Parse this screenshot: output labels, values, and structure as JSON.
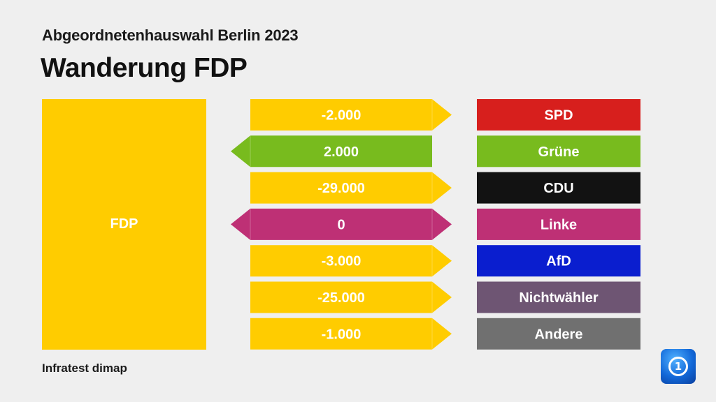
{
  "header": {
    "subtitle": "Abgeordnetenhauswahl Berlin 2023",
    "title": "Wanderung FDP"
  },
  "source": "Infratest dimap",
  "logo": {
    "icon": "tagesschau-logo-icon",
    "glyph": "1"
  },
  "colors": {
    "background": "#efefef",
    "fdp": "#ffcc00",
    "text_light": "#ffffff"
  },
  "chart_data": {
    "type": "bar",
    "title": "Wanderung FDP",
    "subtitle": "Abgeordnetenhauswahl Berlin 2023",
    "focus_party": {
      "name": "FDP",
      "color": "#ffcc00"
    },
    "categories": [
      "SPD",
      "Grüne",
      "CDU",
      "Linke",
      "AfD",
      "Nichtwähler",
      "Andere"
    ],
    "values": [
      -2000,
      2000,
      -29000,
      0,
      -3000,
      -25000,
      -1000
    ],
    "value_labels": [
      "-2.000",
      "2.000",
      "-29.000",
      "0",
      "-3.000",
      "-25.000",
      "-1.000"
    ],
    "party_colors": [
      "#d71f1d",
      "#78bb1e",
      "#121212",
      "#be3075",
      "#0a1ecf",
      "#6e5573",
      "#707070"
    ],
    "direction_note_values": [
      "out",
      "in",
      "out",
      "both",
      "out",
      "out",
      "out"
    ]
  }
}
